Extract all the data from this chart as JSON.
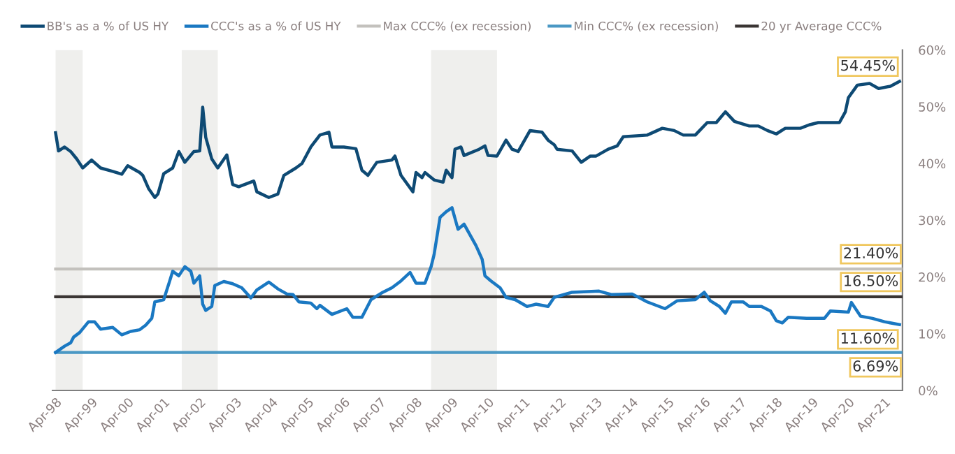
{
  "chart_data": {
    "type": "line",
    "x": [
      "1998-04",
      "1998-05",
      "1998-07",
      "1998-09",
      "1998-11",
      "1999-01",
      "1999-04",
      "1999-07",
      "1999-11",
      "2000-02",
      "2000-04",
      "2000-08",
      "2000-09",
      "2000-11",
      "2001-01",
      "2001-02",
      "2001-04",
      "2001-07",
      "2001-09",
      "2001-11",
      "2002-02",
      "2002-04",
      "2002-05",
      "2002-06",
      "2002-08",
      "2002-10",
      "2003-01",
      "2003-03",
      "2003-05",
      "2003-10",
      "2003-11",
      "2004-03",
      "2004-06",
      "2004-08",
      "2004-12",
      "2005-02",
      "2005-05",
      "2005-08",
      "2005-11",
      "2005-12",
      "2006-04",
      "2006-08",
      "2006-10",
      "2006-12",
      "2007-03",
      "2007-08",
      "2007-09",
      "2007-11",
      "2008-03",
      "2008-04",
      "2008-06",
      "2008-07",
      "2008-10",
      "2009-01",
      "2009-02",
      "2009-04",
      "2009-05",
      "2009-07",
      "2009-08",
      "2010-01",
      "2010-03",
      "2010-04",
      "2010-07",
      "2010-10",
      "2010-12",
      "2011-02",
      "2011-06",
      "2011-10",
      "2011-12",
      "2012-02",
      "2012-03",
      "2012-08",
      "2012-11",
      "2013-02",
      "2013-04",
      "2013-08",
      "2013-11",
      "2014-01",
      "2014-09",
      "2015-02",
      "2015-06",
      "2015-09",
      "2016-01",
      "2016-05",
      "2016-08",
      "2016-11",
      "2017-02",
      "2017-07",
      "2017-10",
      "2018-01",
      "2018-04",
      "2018-07",
      "2018-12",
      "2019-03",
      "2019-06",
      "2020-01",
      "2020-03",
      "2020-04",
      "2020-07",
      "2020-11",
      "2021-02",
      "2021-06",
      "2021-09"
    ],
    "series": [
      {
        "name": "BB's as a % of US HY",
        "color": "#0e4a74",
        "values": [
          45.4,
          42.2,
          42.9,
          42.1,
          40.8,
          39.2,
          40.6,
          39.2,
          38.6,
          38.1,
          39.6,
          38.4,
          37.9,
          35.5,
          34.0,
          34.6,
          38.2,
          39.2,
          42.1,
          40.2,
          42.1,
          42.2,
          49.9,
          44.6,
          40.8,
          39.2,
          41.5,
          36.3,
          35.9,
          36.9,
          35.0,
          34.0,
          34.6,
          37.9,
          39.2,
          40.0,
          42.9,
          45.0,
          45.5,
          42.9,
          42.9,
          42.6,
          38.8,
          37.9,
          40.2,
          40.6,
          41.3,
          37.9,
          35.0,
          38.4,
          37.5,
          38.4,
          37.1,
          36.7,
          38.8,
          37.5,
          42.5,
          42.9,
          41.4,
          42.5,
          43.1,
          41.4,
          41.3,
          44.1,
          42.5,
          42.1,
          45.8,
          45.5,
          44.1,
          43.3,
          42.5,
          42.2,
          40.2,
          41.3,
          41.3,
          42.5,
          43.1,
          44.7,
          45.0,
          46.2,
          45.8,
          45.0,
          45.0,
          47.2,
          47.2,
          49.1,
          47.4,
          46.6,
          46.6,
          45.8,
          45.2,
          46.2,
          46.2,
          46.8,
          47.2,
          47.2,
          49.1,
          51.6,
          53.8,
          54.1,
          53.2,
          53.6,
          54.45
        ]
      },
      {
        "name": "CCC's as a % of US HY",
        "color": "#1a78c2",
        "x": [
          "1998-04",
          "1998-07",
          "1998-09",
          "1998-10",
          "1998-12",
          "1999-03",
          "1999-05",
          "1999-07",
          "1999-11",
          "2000-02",
          "2000-05",
          "2000-08",
          "2000-10",
          "2000-12",
          "2001-01",
          "2001-04",
          "2001-06",
          "2001-07",
          "2001-09",
          "2001-11",
          "2002-01",
          "2002-02",
          "2002-04",
          "2002-05",
          "2002-06",
          "2002-08",
          "2002-09",
          "2002-12",
          "2003-03",
          "2003-06",
          "2003-09",
          "2003-11",
          "2004-03",
          "2004-06",
          "2004-09",
          "2004-11",
          "2005-01",
          "2005-05",
          "2005-07",
          "2005-08",
          "2005-12",
          "2006-05",
          "2006-07",
          "2006-10",
          "2007-01",
          "2007-05",
          "2007-08",
          "2007-11",
          "2008-02",
          "2008-04",
          "2008-07",
          "2008-09",
          "2008-10",
          "2008-12",
          "2009-02",
          "2009-04",
          "2009-06",
          "2009-08",
          "2009-12",
          "2010-02",
          "2010-03",
          "2010-05",
          "2010-08",
          "2010-10",
          "2011-01",
          "2011-05",
          "2011-08",
          "2011-12",
          "2012-02",
          "2012-08",
          "2013-05",
          "2013-09",
          "2014-04",
          "2014-09",
          "2015-03",
          "2015-07",
          "2016-01",
          "2016-04",
          "2016-06",
          "2016-09",
          "2016-11",
          "2017-01",
          "2017-05",
          "2017-07",
          "2017-11",
          "2018-02",
          "2018-04",
          "2018-06",
          "2018-08",
          "2019-02",
          "2019-08",
          "2019-10",
          "2020-04",
          "2020-05",
          "2020-08",
          "2020-12",
          "2021-04",
          "2021-09"
        ],
        "values": [
          6.7,
          7.8,
          8.4,
          9.4,
          10.2,
          12.1,
          12.1,
          10.8,
          11.1,
          9.8,
          10.4,
          10.7,
          11.5,
          12.7,
          15.6,
          16.0,
          19.3,
          21.0,
          20.2,
          21.8,
          21.0,
          18.9,
          20.2,
          15.2,
          14.1,
          14.8,
          18.5,
          19.2,
          18.8,
          18.1,
          16.3,
          17.7,
          19.1,
          17.9,
          17.0,
          16.9,
          15.6,
          15.4,
          14.4,
          15.0,
          13.4,
          14.4,
          12.9,
          12.9,
          16.0,
          17.3,
          18.1,
          19.3,
          20.8,
          18.9,
          18.9,
          21.8,
          23.9,
          30.5,
          31.5,
          32.2,
          28.4,
          29.3,
          25.5,
          23.1,
          20.2,
          19.3,
          18.1,
          16.4,
          16.0,
          14.8,
          15.2,
          14.8,
          16.4,
          17.3,
          17.5,
          16.9,
          17.0,
          15.6,
          14.4,
          15.8,
          16.0,
          17.3,
          15.8,
          14.8,
          13.6,
          15.6,
          15.6,
          14.8,
          14.8,
          14.0,
          12.3,
          11.9,
          12.9,
          12.7,
          12.7,
          14.0,
          13.8,
          15.5,
          13.1,
          12.7,
          12.1,
          11.6
        ]
      },
      {
        "name": "Max CCC% (ex recession)",
        "color": "#c3c1bd",
        "x": [
          "1998-04",
          "2021-10"
        ],
        "values": [
          21.4,
          21.4
        ]
      },
      {
        "name": "Min CCC% (ex recession)",
        "color": "#4a98c4",
        "x": [
          "1998-04",
          "2021-10"
        ],
        "values": [
          6.69,
          6.69
        ]
      },
      {
        "name": "20 yr Average CCC%",
        "color": "#3a3533",
        "x": [
          "1998-04",
          "2021-10"
        ],
        "values": [
          16.5,
          16.5
        ]
      }
    ],
    "bands": [
      {
        "axis": "x",
        "from": "1998-04",
        "to": "1999-01",
        "color": "#efefed"
      },
      {
        "axis": "x",
        "from": "2001-10",
        "to": "2002-10",
        "color": "#efefed"
      },
      {
        "axis": "x",
        "from": "2008-09",
        "to": "2010-07",
        "color": "#efefed"
      }
    ],
    "annotations": [
      {
        "text": "54.45%",
        "x": "2021-09",
        "y": 54.45
      },
      {
        "text": "21.40%",
        "x": "2021-10",
        "y": 21.4
      },
      {
        "text": "16.50%",
        "x": "2021-10",
        "y": 16.5
      },
      {
        "text": "11.60%",
        "x": "2021-09",
        "y": 11.6
      },
      {
        "text": "6.69%",
        "x": "2021-10",
        "y": 6.69
      }
    ],
    "xlim": [
      "1998-03",
      "2021-10"
    ],
    "xticks": [
      {
        "value": "1998-04",
        "label": "Apr-98"
      },
      {
        "value": "1999-04",
        "label": "Apr-99"
      },
      {
        "value": "2000-04",
        "label": "Apr-00"
      },
      {
        "value": "2001-04",
        "label": "Apr-01"
      },
      {
        "value": "2002-04",
        "label": "Apr-02"
      },
      {
        "value": "2003-04",
        "label": "Apr-03"
      },
      {
        "value": "2004-04",
        "label": "Apr-04"
      },
      {
        "value": "2005-04",
        "label": "Apr-05"
      },
      {
        "value": "2006-04",
        "label": "Apr-06"
      },
      {
        "value": "2007-04",
        "label": "Apr-07"
      },
      {
        "value": "2008-04",
        "label": "Apr-08"
      },
      {
        "value": "2009-04",
        "label": "Apr-09"
      },
      {
        "value": "2010-04",
        "label": "Apr-10"
      },
      {
        "value": "2011-04",
        "label": "Apr-11"
      },
      {
        "value": "2012-04",
        "label": "Apr-12"
      },
      {
        "value": "2013-04",
        "label": "Apr-13"
      },
      {
        "value": "2014-04",
        "label": "Apr-14"
      },
      {
        "value": "2015-04",
        "label": "Apr-15"
      },
      {
        "value": "2016-04",
        "label": "Apr-16"
      },
      {
        "value": "2017-04",
        "label": "Apr-17"
      },
      {
        "value": "2018-04",
        "label": "Apr-18"
      },
      {
        "value": "2019-04",
        "label": "Apr-19"
      },
      {
        "value": "2020-04",
        "label": "Apr-20"
      },
      {
        "value": "2021-04",
        "label": "Apr-21"
      }
    ],
    "ylim": [
      0,
      60
    ],
    "yticks": [
      {
        "value": 0,
        "label": "0%"
      },
      {
        "value": 10,
        "label": "10%"
      },
      {
        "value": 20,
        "label": "20%"
      },
      {
        "value": 30,
        "label": "30%"
      },
      {
        "value": 40,
        "label": "40%"
      },
      {
        "value": 50,
        "label": "50%"
      },
      {
        "value": 60,
        "label": "60%"
      }
    ],
    "grid": false,
    "legend": "top",
    "marker": "none",
    "line_style": "solid"
  }
}
